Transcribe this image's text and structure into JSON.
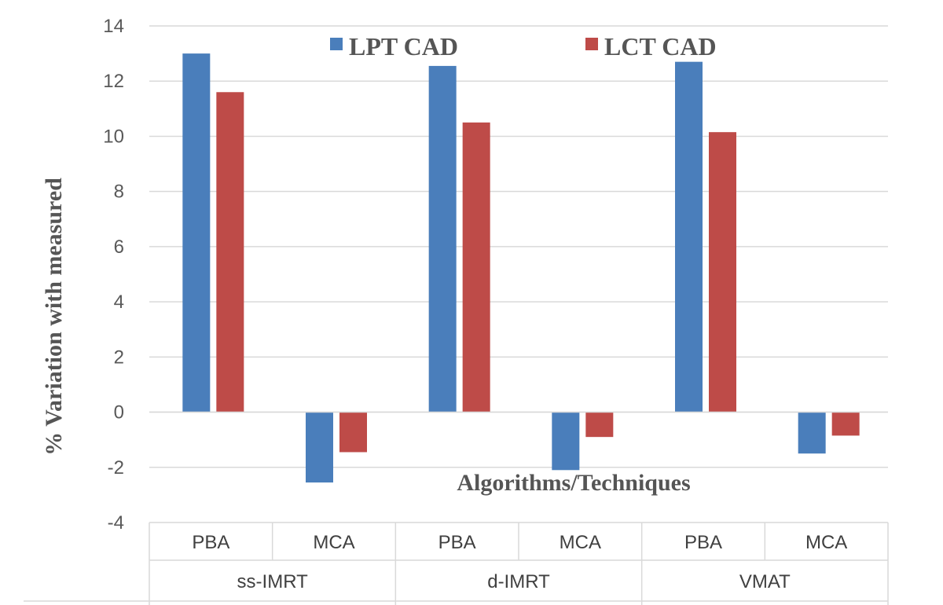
{
  "chart_data": {
    "type": "bar",
    "ylabel": "% Variation with measured",
    "xlabel": "Algorithms/Techniques",
    "ylim": [
      -4,
      14
    ],
    "yticks": [
      14,
      12,
      10,
      8,
      6,
      4,
      2,
      0,
      -2,
      -4
    ],
    "grid": true,
    "legend_position": "top",
    "groups": [
      {
        "label": "ss-IMRT",
        "categories": [
          "PBA",
          "MCA"
        ]
      },
      {
        "label": "d-IMRT",
        "categories": [
          "PBA",
          "MCA"
        ]
      },
      {
        "label": "VMAT",
        "categories": [
          "PBA",
          "MCA"
        ]
      }
    ],
    "categories": [
      "PBA",
      "MCA",
      "PBA",
      "MCA",
      "PBA",
      "MCA"
    ],
    "series": [
      {
        "name": "LPT CAD",
        "color": "#4a7ebb",
        "values": [
          13.0,
          -2.55,
          12.55,
          -2.1,
          12.7,
          -1.5
        ]
      },
      {
        "name": "LCT CAD",
        "color": "#be4b48",
        "values": [
          11.6,
          -1.45,
          10.5,
          -0.9,
          10.15,
          -0.85
        ]
      }
    ]
  }
}
